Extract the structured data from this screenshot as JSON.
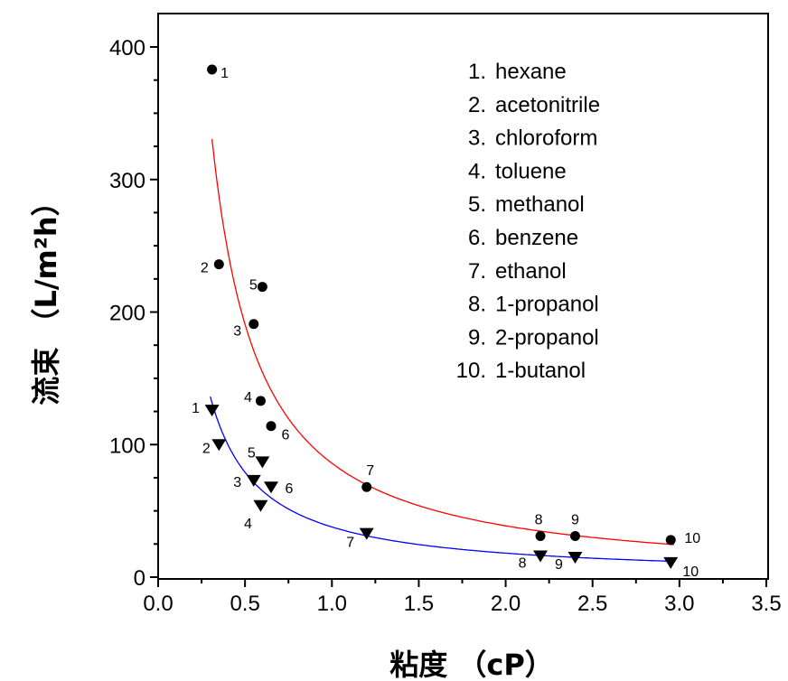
{
  "chart_data": {
    "type": "scatter",
    "title": "",
    "xlabel": "粘度 （cP）",
    "ylabel": "流束 （L/m²h）",
    "xlim": [
      0.0,
      3.5
    ],
    "ylim": [
      0,
      400
    ],
    "xticks": [
      "0.0",
      "0.5",
      "1.0",
      "1.5",
      "2.0",
      "2.5",
      "3.0",
      "3.5"
    ],
    "yticks": [
      "0",
      "100",
      "200",
      "300",
      "400"
    ],
    "grid": false,
    "legend_position": "top-right",
    "legend": [
      "1. hexane",
      "2. acetonitrile",
      "3. chloroform",
      "4. toluene",
      "5. methanol",
      "6. benzene",
      "7. ethanol",
      "8. 1-propanol",
      "9. 2-propanol",
      "10. 1-butanol"
    ],
    "series": [
      {
        "marker": "circle",
        "color": "#000000",
        "fit_color": "#ff0000",
        "labels": [
          "1",
          "2",
          "3",
          "4",
          "5",
          "6",
          "7",
          "8",
          "9",
          "10"
        ],
        "x": [
          0.31,
          0.35,
          0.55,
          0.59,
          0.6,
          0.65,
          1.2,
          2.2,
          2.4,
          2.95
        ],
        "y": [
          383,
          236,
          191,
          133,
          219,
          114,
          68,
          31,
          31,
          28
        ]
      },
      {
        "marker": "triangle-down",
        "color": "#000000",
        "fit_color": "#0000ff",
        "labels": [
          "1",
          "2",
          "3",
          "4",
          "5",
          "6",
          "7",
          "8",
          "9",
          "10"
        ],
        "x": [
          0.31,
          0.35,
          0.55,
          0.59,
          0.6,
          0.65,
          1.2,
          2.2,
          2.4,
          2.95
        ],
        "y": [
          126,
          100,
          73,
          54,
          87,
          68,
          33,
          16,
          15,
          11
        ]
      }
    ]
  }
}
